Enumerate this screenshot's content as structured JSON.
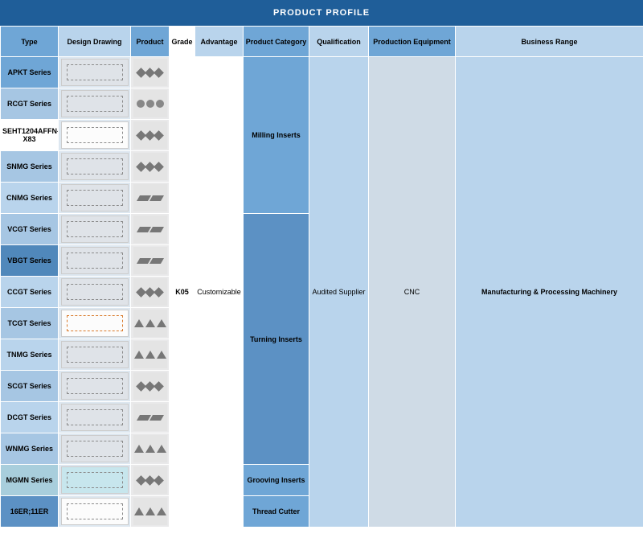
{
  "title": "PRODUCT PROFILE",
  "headers": {
    "type": "Type",
    "drawing": "Design Drawing",
    "product": "Product",
    "grade": "Grade",
    "advantage": "Advantage",
    "category": "Product Category",
    "qualification": "Qualification",
    "equipment": "Production Equipment",
    "range": "Business Range"
  },
  "header_colors": {
    "type": "#6fa6d6",
    "drawing": "#b9d4ec",
    "product": "#6fa6d6",
    "grade": "#ffffff",
    "advantage": "#b9d4ec",
    "category": "#6fa6d6",
    "qualification": "#b9d4ec",
    "equipment": "#6fa6d6",
    "range": "#b9d4ec"
  },
  "grade": "K05",
  "advantage": "Customizable",
  "qualification": "Audited Supplier",
  "equipment": "CNC",
  "range": "Manufacturing & Processing Machinery",
  "categories": {
    "milling": "Milling Inserts",
    "turning": "Turning Inserts",
    "grooving": "Grooving Inserts",
    "thread": "Thread Cutter"
  },
  "rows": [
    {
      "type": "APKT Series",
      "type_bg": "#6fa6d6",
      "draw_style": "",
      "shape": "sq"
    },
    {
      "type": "RCGT Series",
      "type_bg": "#a6c6e3",
      "draw_style": "",
      "shape": "dot"
    },
    {
      "type": "SEHT1204AFFN-X83",
      "type_bg": "#ffffff",
      "draw_style": "white",
      "shape": "sq"
    },
    {
      "type": "SNMG Series",
      "type_bg": "#a6c6e3",
      "draw_style": "",
      "shape": "sq"
    },
    {
      "type": "CNMG Series",
      "type_bg": "#b9d4ec",
      "draw_style": "",
      "shape": "dia"
    },
    {
      "type": "VCGT Series",
      "type_bg": "#a6c6e3",
      "draw_style": "",
      "shape": "dia"
    },
    {
      "type": "VBGT Series",
      "type_bg": "#5088bb",
      "draw_style": "",
      "shape": "dia"
    },
    {
      "type": "CCGT Series",
      "type_bg": "#b9d4ec",
      "draw_style": "",
      "shape": "sq"
    },
    {
      "type": "TCGT Series",
      "type_bg": "#a6c6e3",
      "draw_style": "orange white",
      "shape": "tri"
    },
    {
      "type": "TNMG Series",
      "type_bg": "#b9d4ec",
      "draw_style": "",
      "shape": "tri"
    },
    {
      "type": "SCGT Series",
      "type_bg": "#a6c6e3",
      "draw_style": "",
      "shape": "sq"
    },
    {
      "type": "DCGT Series",
      "type_bg": "#b9d4ec",
      "draw_style": "",
      "shape": "dia"
    },
    {
      "type": "WNMG Series",
      "type_bg": "#a6c6e3",
      "draw_style": "",
      "shape": "tri"
    },
    {
      "type": "MGMN Series",
      "type_bg": "#a8cedc",
      "draw_style": "teal",
      "shape": "sq"
    },
    {
      "type": "16ER;11ER",
      "type_bg": "#5c91c4",
      "draw_style": "white",
      "shape": "tri"
    }
  ],
  "merged_colors": {
    "grade_adv_bg": "#ffffff",
    "qual_bg": "#b9d4ec",
    "equip_bg": "#cfdbe6",
    "range_bg": "#b9d4ec",
    "category_milling_bg": "#6fa6d6",
    "category_turning_bg": "#5c91c4",
    "category_grooving_bg": "#6fa6d6",
    "category_thread_bg": "#6fa6d6"
  }
}
